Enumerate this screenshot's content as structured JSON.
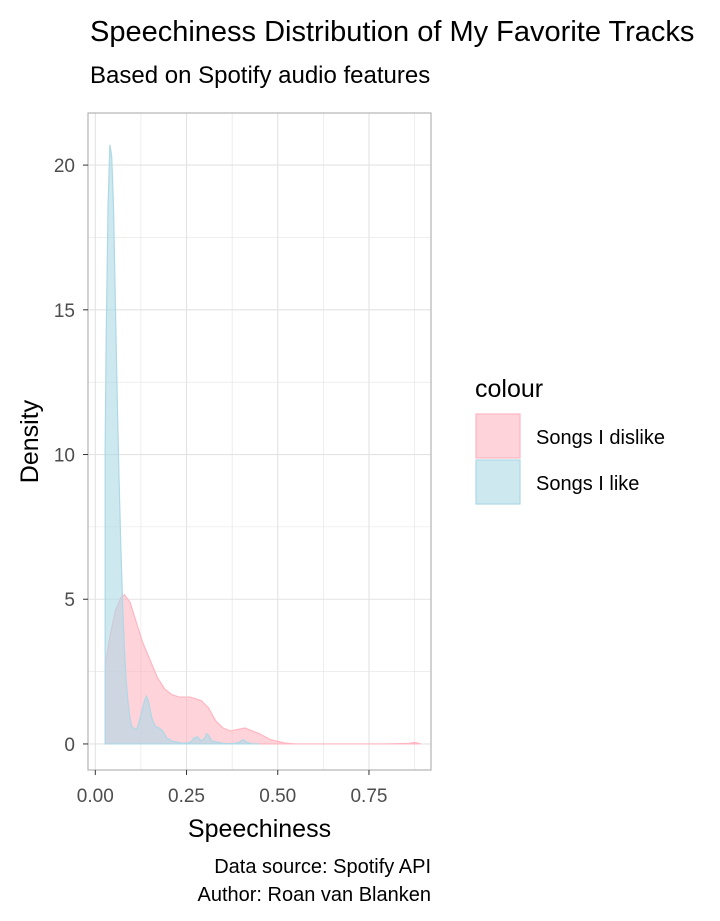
{
  "chart_data": {
    "type": "area",
    "title": "Speechiness Distribution of My Favorite Tracks",
    "subtitle": "Based on Spotify audio features",
    "xlabel": "Speechiness",
    "ylabel": "Density",
    "caption_lines": [
      "Data source: Spotify API",
      "Author: Roan van Blanken"
    ],
    "legend_title": "colour",
    "legend_position": "right",
    "grid": true,
    "xlim": [
      -0.02,
      0.92
    ],
    "ylim": [
      -0.9,
      21.8
    ],
    "x_ticks": [
      0,
      0.25,
      0.5,
      0.75
    ],
    "x_tick_labels": [
      "0.00",
      "0.25",
      "0.50",
      "0.75"
    ],
    "y_ticks": [
      0,
      5,
      10,
      15,
      20
    ],
    "y_tick_labels": [
      "0",
      "5",
      "10",
      "15",
      "20"
    ],
    "series": [
      {
        "name": "Songs I dislike",
        "fill": "#ffb6c1",
        "stroke": "#ffb6c1",
        "fill_opacity": 0.6,
        "points": [
          [
            0.027,
            2.7
          ],
          [
            0.04,
            3.7
          ],
          [
            0.055,
            4.6
          ],
          [
            0.07,
            5.05
          ],
          [
            0.08,
            5.15
          ],
          [
            0.095,
            4.9
          ],
          [
            0.11,
            4.3
          ],
          [
            0.13,
            3.5
          ],
          [
            0.15,
            2.9
          ],
          [
            0.17,
            2.3
          ],
          [
            0.19,
            1.9
          ],
          [
            0.21,
            1.7
          ],
          [
            0.23,
            1.62
          ],
          [
            0.26,
            1.62
          ],
          [
            0.29,
            1.5
          ],
          [
            0.31,
            1.25
          ],
          [
            0.33,
            0.8
          ],
          [
            0.35,
            0.55
          ],
          [
            0.37,
            0.45
          ],
          [
            0.39,
            0.5
          ],
          [
            0.41,
            0.55
          ],
          [
            0.43,
            0.45
          ],
          [
            0.45,
            0.35
          ],
          [
            0.48,
            0.15
          ],
          [
            0.52,
            0.03
          ],
          [
            0.55,
            0.0
          ],
          [
            0.6,
            0.0
          ],
          [
            0.7,
            0.0
          ],
          [
            0.8,
            0.0
          ],
          [
            0.86,
            0.02
          ],
          [
            0.875,
            0.05
          ],
          [
            0.89,
            0.01
          ]
        ]
      },
      {
        "name": "Songs I like",
        "fill": "#add8e6",
        "stroke": "#add8e6",
        "fill_opacity": 0.6,
        "points": [
          [
            0.027,
            10.2
          ],
          [
            0.03,
            14.2
          ],
          [
            0.035,
            18.6
          ],
          [
            0.04,
            20.7
          ],
          [
            0.045,
            20.3
          ],
          [
            0.05,
            18.5
          ],
          [
            0.055,
            15.2
          ],
          [
            0.06,
            12.0
          ],
          [
            0.065,
            9.2
          ],
          [
            0.07,
            6.8
          ],
          [
            0.075,
            4.8
          ],
          [
            0.08,
            3.2
          ],
          [
            0.085,
            2.1
          ],
          [
            0.09,
            1.4
          ],
          [
            0.095,
            0.9
          ],
          [
            0.1,
            0.6
          ],
          [
            0.11,
            0.5
          ],
          [
            0.115,
            0.55
          ],
          [
            0.125,
            1.0
          ],
          [
            0.135,
            1.5
          ],
          [
            0.14,
            1.65
          ],
          [
            0.145,
            1.5
          ],
          [
            0.155,
            0.9
          ],
          [
            0.165,
            0.6
          ],
          [
            0.175,
            0.55
          ],
          [
            0.185,
            0.45
          ],
          [
            0.195,
            0.22
          ],
          [
            0.21,
            0.1
          ],
          [
            0.24,
            0.02
          ],
          [
            0.26,
            0.05
          ],
          [
            0.27,
            0.2
          ],
          [
            0.28,
            0.25
          ],
          [
            0.29,
            0.1
          ],
          [
            0.3,
            0.2
          ],
          [
            0.305,
            0.35
          ],
          [
            0.31,
            0.3
          ],
          [
            0.32,
            0.1
          ],
          [
            0.35,
            0.02
          ],
          [
            0.38,
            0.01
          ],
          [
            0.395,
            0.06
          ],
          [
            0.405,
            0.15
          ],
          [
            0.415,
            0.06
          ],
          [
            0.43,
            0.0
          ],
          [
            0.45,
            0.0
          ]
        ]
      }
    ]
  },
  "colors": {
    "panel_border": "#b3b3b3",
    "grid": "#e3e3e3",
    "tick_text": "#4d4d4d",
    "text": "#000000"
  }
}
